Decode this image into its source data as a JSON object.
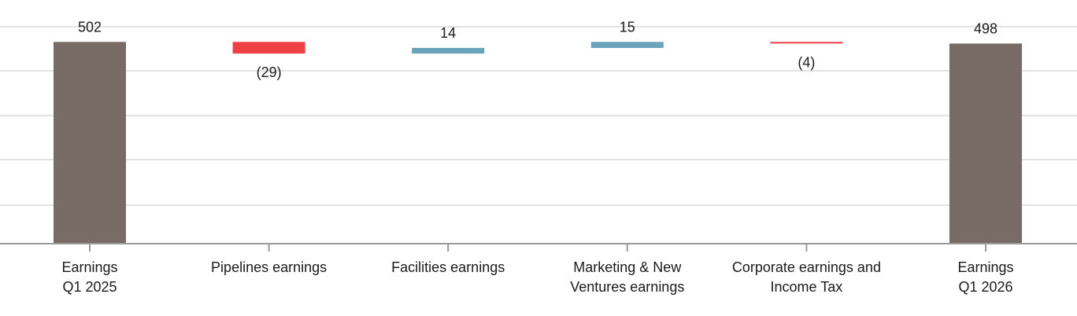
{
  "chart_data": {
    "type": "bar",
    "subtype": "waterfall",
    "title": "",
    "xlabel": "",
    "ylabel": "",
    "grid": true,
    "categories": [
      [
        "Earnings",
        "Q1 2025"
      ],
      [
        "Pipelines earnings"
      ],
      [
        "Facilities earnings"
      ],
      [
        "Marketing & New",
        "Ventures earnings"
      ],
      [
        "Corporate earnings and",
        "Income Tax"
      ],
      [
        "Earnings",
        "Q1 2026"
      ]
    ],
    "steps": [
      {
        "kind": "total",
        "value": 502,
        "label": "502"
      },
      {
        "kind": "delta",
        "value": -29,
        "label": "(29)"
      },
      {
        "kind": "delta",
        "value": 14,
        "label": "14"
      },
      {
        "kind": "delta",
        "value": 15,
        "label": "15"
      },
      {
        "kind": "delta",
        "value": -4,
        "label": "(4)"
      },
      {
        "kind": "total",
        "value": 498,
        "label": "498"
      }
    ],
    "colors": {
      "total": "#786a64",
      "increase": "#6aa3bc",
      "decrease": "#ef4044",
      "grid": "#e3e3e3",
      "axis": "#9a9a9a"
    }
  }
}
